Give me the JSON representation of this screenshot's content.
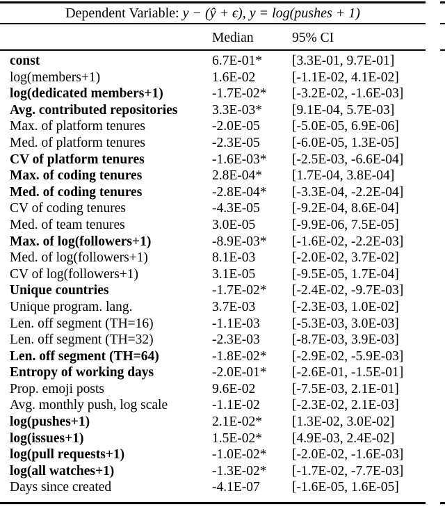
{
  "table": {
    "title": {
      "prefix": "Dependent Variable: ",
      "math": "y − (ŷ + ϵ), y = log(pushes + 1)"
    },
    "columns": {
      "median": "Median",
      "ci": "95% CI"
    },
    "rows": [
      {
        "name": "const",
        "bold": true,
        "median": "6.7E-01*",
        "ci": "[3.3E-01, 9.7E-01]"
      },
      {
        "name": "log(members+1)",
        "bold": false,
        "median": "1.6E-02",
        "ci": "[-1.1E-02, 4.1E-02]"
      },
      {
        "name": "log(dedicated members+1)",
        "bold": true,
        "median": "-1.7E-02*",
        "ci": "[-3.2E-02, -1.6E-03]"
      },
      {
        "name": "Avg. contributed repositories",
        "bold": true,
        "median": "3.3E-03*",
        "ci": "[9.1E-04, 5.7E-03]"
      },
      {
        "name": "Max. of platform tenures",
        "bold": false,
        "median": "-2.0E-05",
        "ci": "[-5.0E-05, 6.9E-06]"
      },
      {
        "name": "Med. of platform tenures",
        "bold": false,
        "median": "-2.3E-05",
        "ci": "[-6.0E-05, 1.3E-05]"
      },
      {
        "name": "CV of platform tenures",
        "bold": true,
        "median": "-1.6E-03*",
        "ci": "[-2.5E-03, -6.6E-04]"
      },
      {
        "name": "Max. of coding tenures",
        "bold": true,
        "median": "2.8E-04*",
        "ci": "[1.7E-04, 3.8E-04]"
      },
      {
        "name": "Med. of coding tenures",
        "bold": true,
        "median": "-2.8E-04*",
        "ci": "[-3.3E-04, -2.2E-04]"
      },
      {
        "name": "CV of coding tenures",
        "bold": false,
        "median": "-4.3E-05",
        "ci": "[-9.2E-04, 8.6E-04]"
      },
      {
        "name": "Med. of team tenures",
        "bold": false,
        "median": "3.0E-05",
        "ci": "[-9.9E-06, 7.5E-05]"
      },
      {
        "name": "Max. of log(followers+1)",
        "bold": true,
        "median": "-8.9E-03*",
        "ci": "[-1.6E-02, -2.2E-03]"
      },
      {
        "name": "Med. of log(followers+1)",
        "bold": false,
        "median": "8.1E-03",
        "ci": "[-2.0E-02, 3.7E-02]"
      },
      {
        "name": "CV of log(followers+1)",
        "bold": false,
        "median": "3.1E-05",
        "ci": "[-9.5E-05, 1.7E-04]"
      },
      {
        "name": "Unique countries",
        "bold": true,
        "median": "-1.7E-02*",
        "ci": "[-2.4E-02, -9.7E-03]"
      },
      {
        "name": "Unique program. lang.",
        "bold": false,
        "median": "3.7E-03",
        "ci": "[-2.3E-03, 1.0E-02]"
      },
      {
        "name": "Len. off segment (TH=16)",
        "bold": false,
        "median": "-1.1E-03",
        "ci": "[-5.3E-03, 3.0E-03]"
      },
      {
        "name": "Len. off segment (TH=32)",
        "bold": false,
        "median": "-2.3E-03",
        "ci": "[-8.7E-03, 3.9E-03]"
      },
      {
        "name": "Len. off segment (TH=64)",
        "bold": true,
        "median": "-1.8E-02*",
        "ci": "[-2.9E-02, -5.9E-03]"
      },
      {
        "name": "Entropy of working days",
        "bold": true,
        "median": "-2.0E-01*",
        "ci": "[-2.6E-01, -1.5E-01]"
      },
      {
        "name": "Prop. emoji posts",
        "bold": false,
        "median": "9.6E-02",
        "ci": "[-7.5E-03, 2.1E-01]"
      },
      {
        "name": "Avg. monthly push, log scale",
        "bold": false,
        "median": "-1.1E-02",
        "ci": "[-2.3E-02, 2.1E-03]"
      },
      {
        "name": "log(pushes+1)",
        "bold": true,
        "median": "2.1E-02*",
        "ci": "[1.3E-02, 3.0E-02]"
      },
      {
        "name": "log(issues+1)",
        "bold": true,
        "median": "1.5E-02*",
        "ci": "[4.9E-03, 2.4E-02]"
      },
      {
        "name": "log(pull requests+1)",
        "bold": true,
        "median": "-1.0E-02*",
        "ci": "[-2.0E-02, -1.6E-03]"
      },
      {
        "name": "log(all watches+1)",
        "bold": true,
        "median": "-1.3E-02*",
        "ci": "[-1.7E-02, -7.7E-03]"
      },
      {
        "name": "Days since created",
        "bold": false,
        "median": "-4.1E-07",
        "ci": "[-1.6E-05, 1.6E-05]"
      }
    ]
  }
}
